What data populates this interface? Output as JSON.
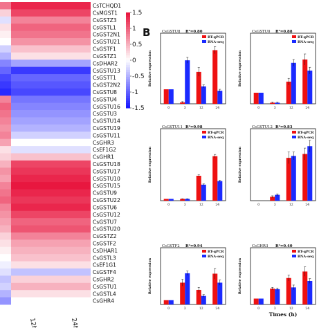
{
  "chart_data": [
    {
      "type": "heatmap",
      "panel": "",
      "rows": [
        "CsTCHQD1",
        "CsMGST1",
        "CsGSTZ3",
        "CsGSTL1",
        "CsGST2N1",
        "CsGSTU21",
        "CsGSTF1",
        "CsGSTZ1",
        "CsDHAR2",
        "CsGSTU13",
        "CsGSTT1",
        "CsGST2N2",
        "CsGSTU8",
        "CsGSTU4",
        "CsGSTU16",
        "CsGSTU3",
        "CsGSTU14",
        "CsGSTU19",
        "CsGSTU11",
        "CsGHR3",
        "CsEF1G2",
        "CsGHR1",
        "CsGSTU18",
        "CsGSTU17",
        "CsGSTU10",
        "CsGSTU15",
        "CsGSTU9",
        "CsGSTU22",
        "CsGSTU6",
        "CsGSTU12",
        "CsGSTU7",
        "CsGSTU20",
        "CsGSTZ2",
        "CsGSTF2",
        "CsDHAR1",
        "CsGSTL3",
        "CsEF1G1",
        "CsGSTF4",
        "CsGHR2",
        "CsGSTU1",
        "CsGSTL4",
        "CsGHR4"
      ],
      "columns": [
        "12h",
        "24h"
      ],
      "values": [
        [
          0.9,
          1.4
        ],
        [
          0.3,
          1.2
        ],
        [
          -0.2,
          0.8
        ],
        [
          0.2,
          1.0
        ],
        [
          0.1,
          0.9
        ],
        [
          0.0,
          0.7
        ],
        [
          -0.3,
          0.4
        ],
        [
          -0.5,
          0.2
        ],
        [
          -0.8,
          -0.6
        ],
        [
          -1.0,
          -1.3
        ],
        [
          -1.2,
          -1.0
        ],
        [
          -1.3,
          -1.1
        ],
        [
          -1.4,
          -1.2
        ],
        [
          0.8,
          -0.9
        ],
        [
          1.0,
          -0.8
        ],
        [
          0.9,
          -0.7
        ],
        [
          0.8,
          -0.6
        ],
        [
          0.7,
          -0.5
        ],
        [
          0.8,
          -0.3
        ],
        [
          0.6,
          0.0
        ],
        [
          0.2,
          -0.2
        ],
        [
          0.3,
          0.4
        ],
        [
          0.5,
          1.2
        ],
        [
          0.7,
          1.3
        ],
        [
          0.6,
          1.4
        ],
        [
          0.8,
          1.5
        ],
        [
          0.9,
          1.4
        ],
        [
          1.0,
          1.3
        ],
        [
          0.8,
          1.4
        ],
        [
          0.7,
          1.2
        ],
        [
          0.6,
          1.0
        ],
        [
          0.5,
          1.1
        ],
        [
          0.3,
          0.8
        ],
        [
          0.2,
          0.6
        ],
        [
          0.1,
          0.5
        ],
        [
          0.0,
          0.4
        ],
        [
          -0.1,
          0.2
        ],
        [
          -0.2,
          -0.4
        ],
        [
          -0.4,
          0.3
        ],
        [
          -0.3,
          0.5
        ],
        [
          -0.5,
          0.2
        ],
        [
          -0.7,
          0.0
        ]
      ],
      "legend_ticks": [
        1.5,
        1,
        0.5,
        0,
        -0.5,
        -1,
        -1.5
      ],
      "colors": {
        "high": "#e8173f",
        "mid": "#ffffff",
        "low": "#1a1aff"
      }
    },
    {
      "type": "bar",
      "panel": "B",
      "gene": "CsGSTU8",
      "r2": "R²=0.80",
      "x": [
        "0",
        "3",
        "12",
        "24"
      ],
      "ylabel": "Relative expression",
      "xlabel": "",
      "series": [
        {
          "name": "RT-qPCR",
          "values": [
            1.0,
            0.1,
            2.2,
            3.7
          ],
          "err": [
            0.0,
            0.05,
            0.3,
            0.25
          ]
        },
        {
          "name": "RNA-seq",
          "values": [
            1.0,
            3.0,
            1.2,
            0.9
          ],
          "err": [
            0.0,
            0.2,
            0.1,
            0.1
          ]
        }
      ],
      "ylim": [
        0,
        4.2
      ]
    },
    {
      "type": "bar",
      "panel": "",
      "gene": "CsGSTU0",
      "r2": "R²=0.88",
      "x": [
        "0",
        "3",
        "12",
        "24"
      ],
      "ylabel": "Relative expression",
      "xlabel": "",
      "series": [
        {
          "name": "RT-qPCR",
          "values": [
            1.0,
            0.1,
            2.0,
            4.0
          ],
          "err": [
            0.0,
            0.05,
            0.3,
            0.5
          ]
        },
        {
          "name": "RNA-seq",
          "values": [
            1.0,
            0.1,
            3.7,
            3.0
          ],
          "err": [
            0.0,
            0.05,
            0.3,
            0.3
          ]
        }
      ],
      "ylim": [
        0,
        5.5
      ]
    },
    {
      "type": "bar",
      "panel": "",
      "gene": "CsGSTU11",
      "r2": "R²=0.98",
      "x": [
        "0",
        "3",
        "12",
        "24"
      ],
      "ylabel": "Relative expression",
      "xlabel": "",
      "series": [
        {
          "name": "RT-qPCR",
          "values": [
            1.0,
            1.0,
            14.0,
            25.0
          ],
          "err": [
            0.0,
            0.1,
            0.5,
            1.0
          ]
        },
        {
          "name": "RNA-seq",
          "values": [
            1.0,
            1.0,
            9.0,
            11.0
          ],
          "err": [
            0.0,
            0.1,
            0.4,
            0.5
          ]
        }
      ],
      "ylim": [
        0,
        35
      ]
    },
    {
      "type": "bar",
      "panel": "",
      "gene": "CsGSTU12",
      "r2": "R²=0.83",
      "x": [
        "0",
        "3",
        "12",
        "24"
      ],
      "ylabel": "Relative expression",
      "xlabel": "",
      "series": [
        {
          "name": "RT-qPCR",
          "values": [
            0.0,
            0.2,
            2.2,
            2.4
          ],
          "err": [
            0.0,
            0.05,
            0.3,
            0.3
          ]
        },
        {
          "name": "RNA-seq",
          "values": [
            0.0,
            0.3,
            2.3,
            2.8
          ],
          "err": [
            0.0,
            0.05,
            0.2,
            0.3
          ]
        }
      ],
      "ylim": [
        0,
        3.2
      ]
    },
    {
      "type": "bar",
      "panel": "",
      "gene": "CsGSTF2",
      "r2": "R²=0.94",
      "x": [
        "0",
        "3",
        "12",
        "24"
      ],
      "ylabel": "Relative expression",
      "xlabel": "",
      "series": [
        {
          "name": "RT-qPCR",
          "values": [
            1.0,
            5.1,
            3.4,
            7.2
          ],
          "err": [
            0.0,
            0.8,
            0.6,
            1.2
          ]
        },
        {
          "name": "RNA-seq",
          "values": [
            1.0,
            7.3,
            2.0,
            5.1
          ],
          "err": [
            0.0,
            0.5,
            0.3,
            0.6
          ]
        }
      ],
      "ylim": [
        0,
        11
      ]
    },
    {
      "type": "bar",
      "panel": "",
      "gene": "CsGHR3",
      "r2": "R²=0.40",
      "x": [
        "0",
        "3",
        "12",
        "24"
      ],
      "ylabel": "Relative expression",
      "xlabel": "Times (h)",
      "series": [
        {
          "name": "RT-qPCR",
          "values": [
            1.0,
            2.7,
            4.5,
            5.6
          ],
          "err": [
            0.0,
            0.2,
            0.5,
            0.8
          ]
        },
        {
          "name": "RNA-seq",
          "values": [
            1.0,
            2.6,
            2.9,
            4.0
          ],
          "err": [
            0.0,
            0.2,
            0.4,
            0.4
          ]
        }
      ],
      "ylim": [
        0,
        8
      ]
    }
  ]
}
